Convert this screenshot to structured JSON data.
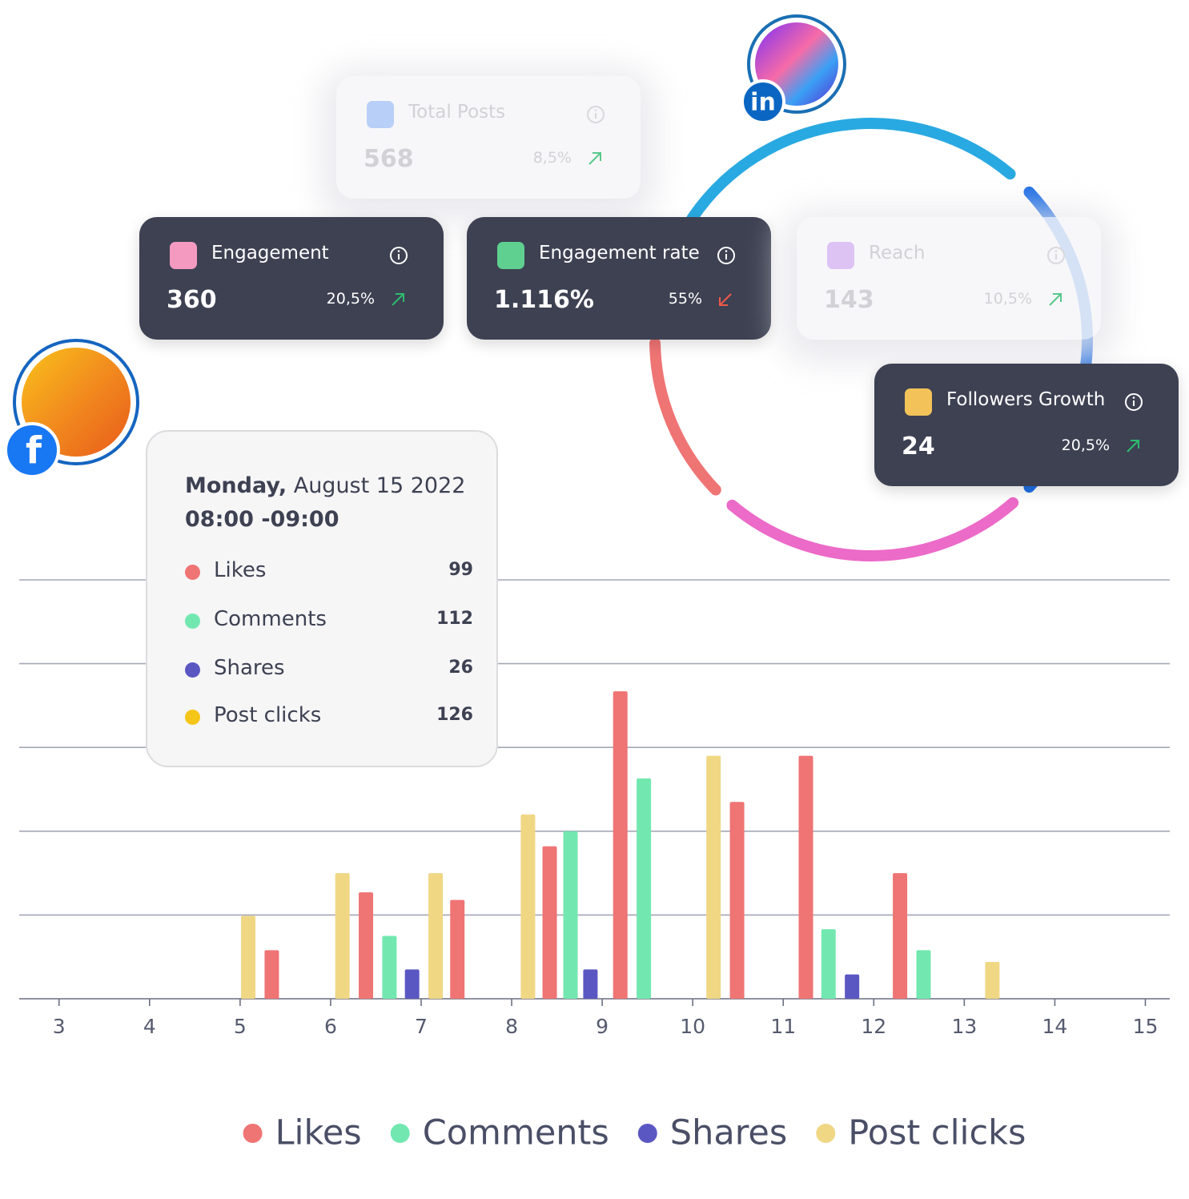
{
  "cards": [
    {
      "title": "Total Posts",
      "value": "568",
      "change": "8,5%",
      "trend": "up",
      "faded": true
    },
    {
      "title": "Engagement",
      "value": "360",
      "change": "20,5%",
      "trend": "up",
      "faded": false
    },
    {
      "title": "Engagement rate",
      "value": "1.116%",
      "change": "55%",
      "trend": "down",
      "faded": false
    },
    {
      "title": "Reach",
      "value": "143",
      "change": "10,5%",
      "trend": "up",
      "faded": true
    },
    {
      "title": "Followers Growth",
      "value": "24",
      "change": "20,5%",
      "trend": "up",
      "faded": false
    }
  ],
  "profiles": {
    "linkedin": "in",
    "facebook": "f"
  },
  "tooltip": {
    "day": "Monday,",
    "date": "August 15  2022",
    "time": "08:00 -09:00",
    "items": [
      {
        "label": "Likes",
        "value": 99,
        "color": "#ef7474"
      },
      {
        "label": "Comments",
        "value": 112,
        "color": "#72e8b0"
      },
      {
        "label": "Shares",
        "value": 26,
        "color": "#5b57c2"
      },
      {
        "label": "Post clicks",
        "value": 126,
        "color": "#f5c518"
      }
    ]
  },
  "chart_data": {
    "type": "bar",
    "xlim": [
      2.56,
      15.27
    ],
    "xticks": [
      3,
      4,
      5,
      6,
      7,
      8,
      9,
      10,
      11,
      12,
      13,
      14,
      15
    ],
    "ylim": [
      0,
      5
    ],
    "yticks": [
      0,
      1,
      2,
      3,
      4,
      5
    ],
    "grid": true,
    "series": [
      {
        "name": "Likes",
        "color": "#ef7474",
        "x": [
          5.35,
          6.39,
          7.4,
          8.42,
          9.2,
          10.49,
          11.25,
          12.29
        ],
        "values": [
          0.58,
          1.27,
          1.18,
          1.82,
          3.67,
          2.35,
          2.9,
          1.5
        ]
      },
      {
        "name": "Comments",
        "color": "#72e8b0",
        "x": [
          6.65,
          8.65,
          9.46,
          11.5,
          12.55
        ],
        "values": [
          0.75,
          2.0,
          2.63,
          0.83,
          0.58
        ]
      },
      {
        "name": "Shares",
        "color": "#5b57c2",
        "x": [
          6.9,
          8.87,
          11.76
        ],
        "values": [
          0.35,
          0.35,
          0.29
        ]
      },
      {
        "name": "Post clicks",
        "color": "#f0d784",
        "x": [
          5.09,
          6.13,
          7.16,
          8.18,
          10.23,
          13.31
        ],
        "values": [
          0.99,
          1.5,
          1.5,
          2.2,
          2.9,
          0.44
        ]
      }
    ]
  }
}
